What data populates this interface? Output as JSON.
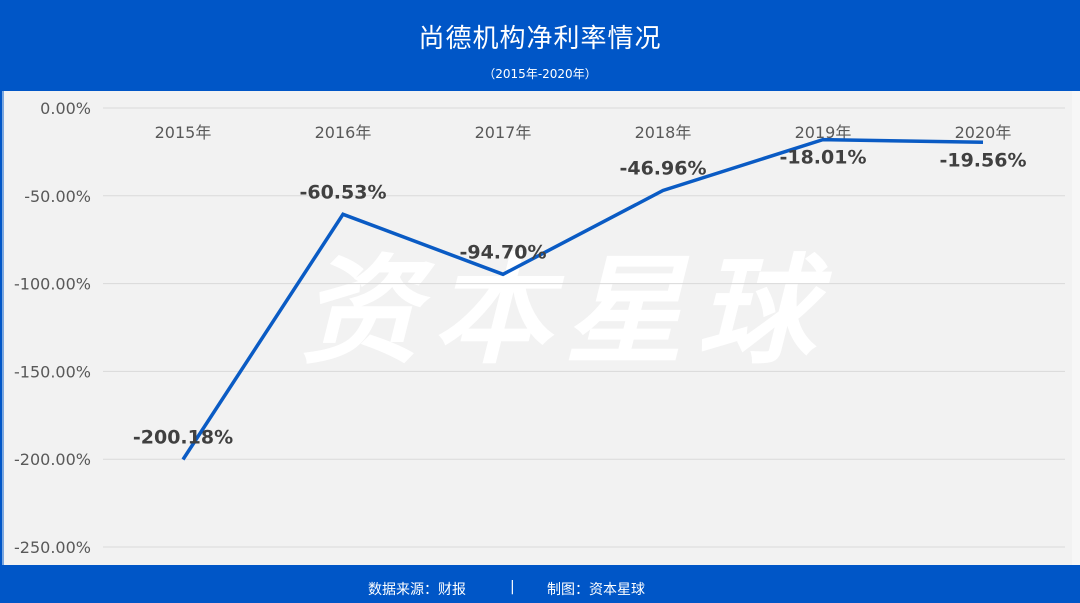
{
  "header": {
    "title": "尚德机构净利率情况",
    "subtitle": "（2015年-2020年）"
  },
  "watermark": "资本星球",
  "footer": {
    "source": "数据来源：财报",
    "separator": "|",
    "credit": "制图：资本星球"
  },
  "colors": {
    "brand_blue": "#0056c7",
    "line": "#0a5bc4",
    "plot_bg": "#f2f2f2",
    "grid": "#d9d9d9"
  },
  "chart_data": {
    "type": "line",
    "title": "尚德机构净利率情况",
    "subtitle": "（2015年-2020年）",
    "categories": [
      "2015年",
      "2016年",
      "2017年",
      "2018年",
      "2019年",
      "2020年"
    ],
    "series": [
      {
        "name": "净利率",
        "values": [
          -200.18,
          -60.53,
          -94.7,
          -46.96,
          -18.01,
          -19.56
        ]
      }
    ],
    "data_labels": [
      "-200.18%",
      "-60.53%",
      "-94.70%",
      "-46.96%",
      "-18.01%",
      "-19.56%"
    ],
    "y_ticks": [
      "0.00%",
      "-50.00%",
      "-100.00%",
      "-150.00%",
      "-200.00%",
      "-250.00%"
    ],
    "xlabel": "",
    "ylabel": "",
    "ylim": [
      -250,
      0
    ],
    "grid": true,
    "x_axis_position": "top",
    "legend": "none"
  }
}
